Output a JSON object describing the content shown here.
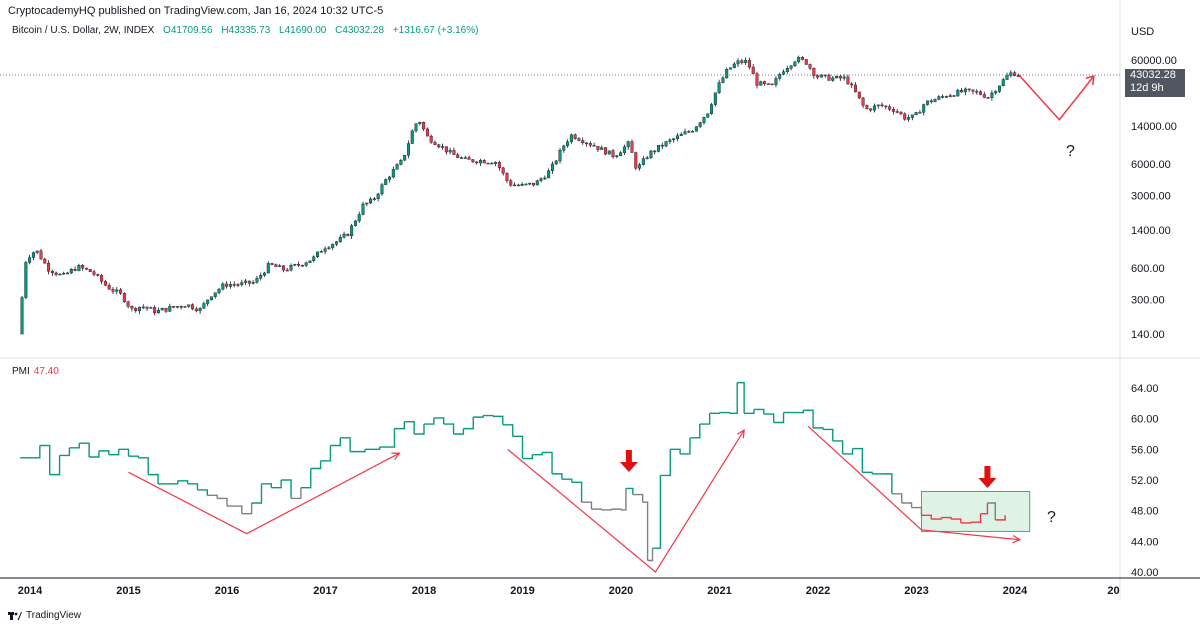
{
  "header": {
    "publisher": "CryptocademyHQ published on TradingView.com, Jan 16, 2024 10:32 UTC-5"
  },
  "legend": {
    "symbol": "Bitcoin / U.S. Dollar, 2W, INDEX",
    "open": "O41709.56",
    "high": "H43335.73",
    "low": "L41690.00",
    "close": "C43032.28",
    "change": "+1316.67 (+3.16%)"
  },
  "price_scale": {
    "currency": "USD",
    "last_price": "43032.28",
    "countdown": "12d 9h"
  },
  "pmi_legend": {
    "name": "PMI",
    "value": "47.40"
  },
  "annotations": {
    "question_mark": "?"
  },
  "footer": {
    "brand": "TradingView"
  },
  "colors": {
    "up": "#089981",
    "down": "#f23645",
    "pmi_up": "#089981",
    "pmi_neutral": "#808080",
    "pmi_down": "#f23645",
    "annotation": "#f23645",
    "box": "#c8ebd4"
  },
  "chart_data": [
    {
      "type": "candlestick",
      "scale": "log",
      "y_ticks": [
        140,
        300,
        600,
        1400,
        3000,
        6000,
        14000,
        60000
      ],
      "y_tick_labels": [
        "140.00",
        "300.00",
        "600.00",
        "1400.00",
        "3000.00",
        "6000.00",
        "14000.00",
        "60000.00"
      ],
      "last_price": 43032.28,
      "x_labels": [
        "2014",
        "2015",
        "2016",
        "2017",
        "2018",
        "2019",
        "2020",
        "2021",
        "2022",
        "2023",
        "2024",
        "20"
      ],
      "series_points": [
        [
          2013.9,
          140
        ],
        [
          2013.98,
          750
        ],
        [
          2014.08,
          900
        ],
        [
          2014.2,
          600
        ],
        [
          2014.35,
          500
        ],
        [
          2014.5,
          620
        ],
        [
          2014.65,
          550
        ],
        [
          2014.8,
          400
        ],
        [
          2014.95,
          330
        ],
        [
          2015.05,
          240
        ],
        [
          2015.15,
          260
        ],
        [
          2015.3,
          230
        ],
        [
          2015.45,
          250
        ],
        [
          2015.6,
          270
        ],
        [
          2015.75,
          240
        ],
        [
          2015.85,
          330
        ],
        [
          2016.0,
          420
        ],
        [
          2016.15,
          420
        ],
        [
          2016.3,
          440
        ],
        [
          2016.45,
          650
        ],
        [
          2016.6,
          580
        ],
        [
          2016.75,
          650
        ],
        [
          2016.9,
          750
        ],
        [
          2017.0,
          950
        ],
        [
          2017.15,
          1100
        ],
        [
          2017.25,
          1300
        ],
        [
          2017.4,
          2400
        ],
        [
          2017.5,
          2700
        ],
        [
          2017.65,
          4500
        ],
        [
          2017.8,
          6500
        ],
        [
          2017.92,
          14000
        ],
        [
          2017.97,
          16000
        ],
        [
          2018.05,
          11000
        ],
        [
          2018.15,
          9500
        ],
        [
          2018.3,
          7500
        ],
        [
          2018.45,
          6500
        ],
        [
          2018.6,
          6500
        ],
        [
          2018.75,
          6300
        ],
        [
          2018.88,
          3900
        ],
        [
          2019.0,
          3700
        ],
        [
          2019.15,
          3900
        ],
        [
          2019.3,
          5200
        ],
        [
          2019.45,
          9500
        ],
        [
          2019.52,
          11500
        ],
        [
          2019.65,
          10000
        ],
        [
          2019.8,
          8500
        ],
        [
          2019.95,
          7200
        ],
        [
          2020.1,
          9500
        ],
        [
          2020.18,
          5300
        ],
        [
          2020.3,
          7500
        ],
        [
          2020.45,
          9300
        ],
        [
          2020.6,
          11000
        ],
        [
          2020.75,
          13000
        ],
        [
          2020.9,
          19000
        ],
        [
          2021.0,
          33000
        ],
        [
          2021.1,
          48000
        ],
        [
          2021.2,
          57000
        ],
        [
          2021.3,
          58000
        ],
        [
          2021.4,
          36000
        ],
        [
          2021.55,
          33000
        ],
        [
          2021.65,
          47000
        ],
        [
          2021.8,
          62000
        ],
        [
          2021.9,
          57000
        ],
        [
          2022.0,
          42000
        ],
        [
          2022.15,
          40000
        ],
        [
          2022.3,
          40000
        ],
        [
          2022.4,
          29000
        ],
        [
          2022.5,
          20000
        ],
        [
          2022.65,
          22000
        ],
        [
          2022.8,
          20000
        ],
        [
          2022.9,
          16800
        ],
        [
          2023.0,
          17000
        ],
        [
          2023.1,
          23000
        ],
        [
          2023.2,
          25000
        ],
        [
          2023.35,
          28000
        ],
        [
          2023.5,
          30000
        ],
        [
          2023.65,
          29000
        ],
        [
          2023.75,
          26500
        ],
        [
          2023.85,
          34000
        ],
        [
          2023.95,
          43000
        ],
        [
          2024.0,
          46000
        ],
        [
          2024.04,
          43032
        ]
      ],
      "projection_points": [
        [
          2024.04,
          43032
        ],
        [
          2024.45,
          16000
        ],
        [
          2024.8,
          42000
        ]
      ]
    },
    {
      "type": "line",
      "name": "PMI",
      "y_ticks": [
        40,
        44,
        48,
        52,
        56,
        60,
        64
      ],
      "y_tick_labels": [
        "40.00",
        "44.00",
        "48.00",
        "52.00",
        "56.00",
        "60.00",
        "64.00"
      ],
      "ylim": [
        39.8,
        66
      ],
      "series_points": [
        [
          2013.9,
          54.9
        ],
        [
          2014.0,
          54.9
        ],
        [
          2014.1,
          56.5
        ],
        [
          2014.2,
          52.7
        ],
        [
          2014.3,
          55.2
        ],
        [
          2014.4,
          56.2
        ],
        [
          2014.5,
          56.8
        ],
        [
          2014.6,
          55.0
        ],
        [
          2014.7,
          55.8
        ],
        [
          2014.8,
          55.3
        ],
        [
          2014.9,
          56.0
        ],
        [
          2015.0,
          55.1
        ],
        [
          2015.1,
          54.9
        ],
        [
          2015.2,
          52.7
        ],
        [
          2015.3,
          51.5
        ],
        [
          2015.4,
          51.5
        ],
        [
          2015.5,
          51.9
        ],
        [
          2015.6,
          51.5
        ],
        [
          2015.7,
          50.7
        ],
        [
          2015.8,
          50.0
        ],
        [
          2015.9,
          49.6
        ],
        [
          2016.0,
          48.6
        ],
        [
          2016.1,
          48.6
        ],
        [
          2016.15,
          47.6
        ],
        [
          2016.25,
          49.0
        ],
        [
          2016.35,
          51.5
        ],
        [
          2016.45,
          51.0
        ],
        [
          2016.55,
          52.0
        ],
        [
          2016.65,
          49.6
        ],
        [
          2016.75,
          51.0
        ],
        [
          2016.85,
          53.5
        ],
        [
          2016.95,
          54.5
        ],
        [
          2017.05,
          56.5
        ],
        [
          2017.15,
          57.5
        ],
        [
          2017.25,
          55.7
        ],
        [
          2017.4,
          56.0
        ],
        [
          2017.55,
          56.3
        ],
        [
          2017.7,
          58.7
        ],
        [
          2017.8,
          59.6
        ],
        [
          2017.9,
          58.0
        ],
        [
          2018.0,
          59.3
        ],
        [
          2018.1,
          60.1
        ],
        [
          2018.2,
          59.3
        ],
        [
          2018.3,
          58.0
        ],
        [
          2018.4,
          58.7
        ],
        [
          2018.5,
          60.2
        ],
        [
          2018.6,
          60.4
        ],
        [
          2018.7,
          60.3
        ],
        [
          2018.8,
          59.2
        ],
        [
          2018.9,
          57.7
        ],
        [
          2019.0,
          54.8
        ],
        [
          2019.1,
          55.3
        ],
        [
          2019.2,
          55.6
        ],
        [
          2019.3,
          52.8
        ],
        [
          2019.4,
          52.1
        ],
        [
          2019.5,
          51.7
        ],
        [
          2019.6,
          49.1
        ],
        [
          2019.7,
          48.2
        ],
        [
          2019.8,
          48.1
        ],
        [
          2019.9,
          48.2
        ],
        [
          2020.0,
          48.1
        ],
        [
          2020.05,
          50.9
        ],
        [
          2020.12,
          50.1
        ],
        [
          2020.22,
          49.1
        ],
        [
          2020.27,
          41.5
        ],
        [
          2020.32,
          43.1
        ],
        [
          2020.4,
          52.6
        ],
        [
          2020.5,
          56.0
        ],
        [
          2020.6,
          55.4
        ],
        [
          2020.7,
          57.5
        ],
        [
          2020.8,
          59.3
        ],
        [
          2020.9,
          60.7
        ],
        [
          2021.0,
          60.8
        ],
        [
          2021.1,
          60.7
        ],
        [
          2021.18,
          64.7
        ],
        [
          2021.25,
          60.7
        ],
        [
          2021.35,
          61.2
        ],
        [
          2021.45,
          60.6
        ],
        [
          2021.55,
          59.5
        ],
        [
          2021.65,
          60.8
        ],
        [
          2021.75,
          60.8
        ],
        [
          2021.85,
          61.1
        ],
        [
          2021.95,
          58.8
        ],
        [
          2022.05,
          58.6
        ],
        [
          2022.15,
          57.1
        ],
        [
          2022.25,
          55.4
        ],
        [
          2022.35,
          56.1
        ],
        [
          2022.45,
          53.0
        ],
        [
          2022.55,
          52.8
        ],
        [
          2022.65,
          52.8
        ],
        [
          2022.75,
          50.2
        ],
        [
          2022.85,
          49.0
        ],
        [
          2022.95,
          48.4
        ],
        [
          2023.05,
          47.4
        ],
        [
          2023.15,
          46.9
        ],
        [
          2023.25,
          47.1
        ],
        [
          2023.35,
          46.9
        ],
        [
          2023.45,
          46.4
        ],
        [
          2023.55,
          46.5
        ],
        [
          2023.65,
          47.6
        ],
        [
          2023.72,
          49.0
        ],
        [
          2023.8,
          46.8
        ],
        [
          2023.9,
          47.4
        ]
      ],
      "annotation_lines": [
        [
          [
            2015.0,
            53.0
          ],
          [
            2016.2,
            45.0
          ],
          [
            2017.75,
            55.5
          ]
        ],
        [
          [
            2018.85,
            56.0
          ],
          [
            2020.35,
            40.0
          ],
          [
            2021.25,
            58.5
          ]
        ],
        [
          [
            2021.9,
            59.0
          ],
          [
            2023.05,
            45.5
          ],
          [
            2024.05,
            44.2
          ]
        ]
      ]
    }
  ]
}
